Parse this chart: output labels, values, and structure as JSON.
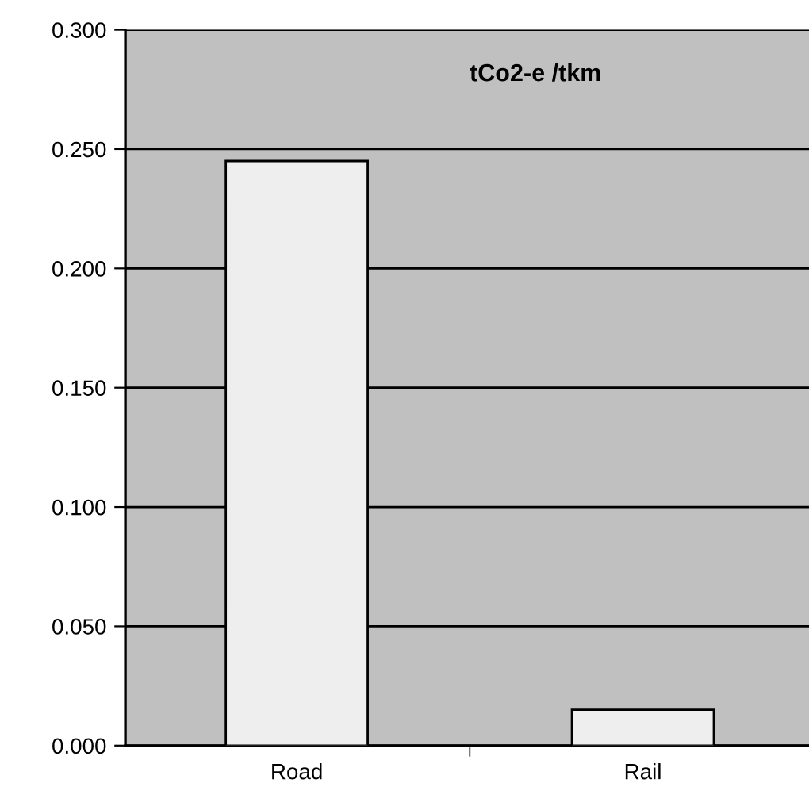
{
  "chart_data": {
    "type": "bar",
    "title": "tCo2-e /tkm",
    "categories": [
      "Road",
      "Rail"
    ],
    "values": [
      0.245,
      0.015
    ],
    "color": "#eeeeee",
    "ylim": [
      0,
      0.3
    ],
    "yticks": [
      {
        "value": 0,
        "label": "0.000"
      },
      {
        "value": 0.05,
        "label": "0.050"
      },
      {
        "value": 0.1,
        "label": "0.100"
      },
      {
        "value": 0.15,
        "label": "0.150"
      },
      {
        "value": 0.2,
        "label": "0.200"
      },
      {
        "value": 0.25,
        "label": "0.250"
      },
      {
        "value": 0.3,
        "label": "0.300"
      }
    ],
    "grid": "y"
  }
}
